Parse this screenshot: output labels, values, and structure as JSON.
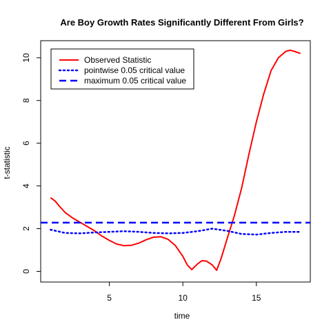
{
  "chart_data": {
    "type": "line",
    "title": "Are Boy Growth Rates Significantly Different From Girls?",
    "xlabel": "time",
    "ylabel": "t-statistic",
    "xlim": [
      0.33,
      18.67
    ],
    "ylim": [
      -0.5,
      10.8
    ],
    "x_ticks": [
      5,
      10,
      15
    ],
    "y_ticks": [
      0,
      2,
      4,
      6,
      8,
      10
    ],
    "legend_position": "top-left",
    "series": [
      {
        "name": "Observed Statistic",
        "color": "#ff0000",
        "style": "solid",
        "x": [
          1,
          1.3,
          1.6,
          2,
          2.5,
          3,
          3.5,
          4,
          4.5,
          5,
          5.5,
          6,
          6.5,
          7,
          7.5,
          8,
          8.5,
          9,
          9.5,
          10,
          10.3,
          10.6,
          11,
          11.3,
          11.6,
          12,
          12.3,
          12.6,
          13,
          13.5,
          14,
          14.5,
          15,
          15.5,
          16,
          16.5,
          17,
          17.3,
          17.6,
          18
        ],
        "y": [
          3.45,
          3.3,
          3.05,
          2.75,
          2.5,
          2.3,
          2.1,
          1.9,
          1.65,
          1.45,
          1.28,
          1.2,
          1.22,
          1.32,
          1.48,
          1.6,
          1.62,
          1.5,
          1.2,
          0.7,
          0.3,
          0.08,
          0.35,
          0.5,
          0.48,
          0.3,
          0.05,
          0.6,
          1.5,
          2.6,
          3.9,
          5.5,
          7.0,
          8.3,
          9.4,
          10.0,
          10.3,
          10.35,
          10.3,
          10.2
        ]
      },
      {
        "name": "pointwise 0.05 critical value",
        "color": "#0000ff",
        "style": "dotted",
        "x": [
          1,
          2,
          3,
          4,
          5,
          6,
          7,
          8,
          9,
          10,
          11,
          12,
          13,
          14,
          15,
          16,
          17,
          18
        ],
        "y": [
          1.95,
          1.8,
          1.78,
          1.82,
          1.85,
          1.88,
          1.85,
          1.8,
          1.78,
          1.8,
          1.88,
          2.0,
          1.9,
          1.75,
          1.72,
          1.8,
          1.85,
          1.85
        ]
      },
      {
        "name": "maximum 0.05 critical value",
        "color": "#0000ff",
        "style": "dashed",
        "x": [
          0.33,
          18.67
        ],
        "y": [
          2.28,
          2.28
        ]
      }
    ]
  }
}
